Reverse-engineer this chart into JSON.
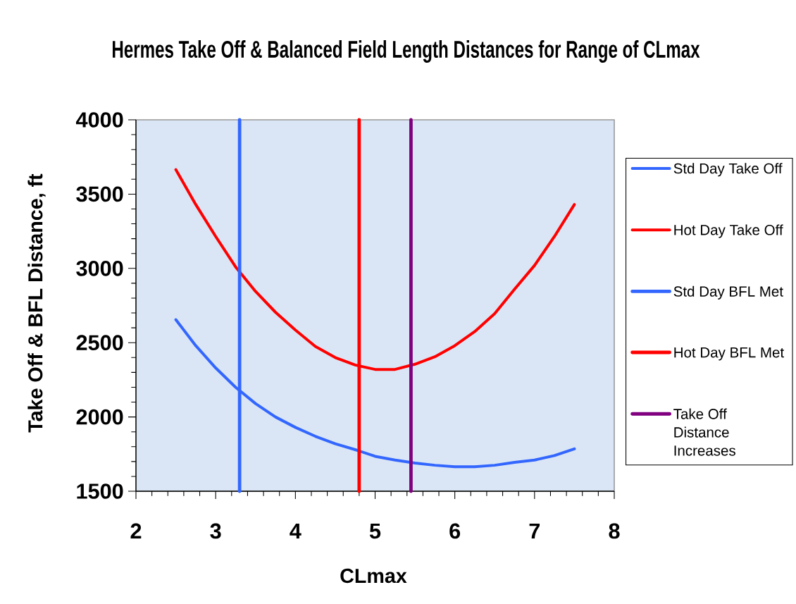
{
  "chart_data": {
    "type": "line",
    "title": "Hermes Take Off & Balanced Field Length Distances for Range of CLmax",
    "xlabel": "CLmax",
    "ylabel": "Take Off & BFL Distance, ft",
    "x": [
      2.5,
      2.75,
      3,
      3.25,
      3.5,
      3.75,
      4,
      4.25,
      4.5,
      4.75,
      5,
      5.25,
      5.5,
      5.75,
      6,
      6.25,
      6.5,
      6.75,
      7,
      7.25,
      7.5
    ],
    "xlim": [
      2,
      8
    ],
    "xticks": [
      2,
      {
        "value": 2.2,
        "label": null
      },
      {
        "value": 2.4,
        "label": null
      },
      {
        "value": 2.6,
        "label": null
      },
      {
        "value": 2.8,
        "label": null
      },
      3,
      {
        "value": 3.2,
        "label": null
      },
      {
        "value": 3.4,
        "label": null
      },
      {
        "value": 3.6,
        "label": null
      },
      {
        "value": 3.8,
        "label": null
      },
      4,
      {
        "value": 4.2,
        "label": null
      },
      {
        "value": 4.4,
        "label": null
      },
      {
        "value": 4.6,
        "label": null
      },
      {
        "value": 4.8,
        "label": null
      },
      5,
      {
        "value": 5.2,
        "label": null
      },
      {
        "value": 5.4,
        "label": null
      },
      {
        "value": 5.6,
        "label": null
      },
      {
        "value": 5.8,
        "label": null
      },
      6,
      {
        "value": 6.2,
        "label": null
      },
      {
        "value": 6.4,
        "label": null
      },
      {
        "value": 6.6,
        "label": null
      },
      {
        "value": 6.8,
        "label": null
      },
      7,
      {
        "value": 7.2,
        "label": null
      },
      {
        "value": 7.4,
        "label": null
      },
      {
        "value": 7.6,
        "label": null
      },
      {
        "value": 7.8,
        "label": null
      },
      8
    ],
    "ylim": [
      1500,
      4000
    ],
    "yticks": [
      1500,
      {
        "value": 1600,
        "label": null
      },
      {
        "value": 1700,
        "label": null
      },
      {
        "value": 1800,
        "label": null
      },
      {
        "value": 1900,
        "label": null
      },
      2000,
      {
        "value": 2100,
        "label": null
      },
      {
        "value": 2200,
        "label": null
      },
      {
        "value": 2300,
        "label": null
      },
      {
        "value": 2400,
        "label": null
      },
      2500,
      {
        "value": 2600,
        "label": null
      },
      {
        "value": 2700,
        "label": null
      },
      {
        "value": 2800,
        "label": null
      },
      {
        "value": 2900,
        "label": null
      },
      3000,
      {
        "value": 3100,
        "label": null
      },
      {
        "value": 3200,
        "label": null
      },
      {
        "value": 3300,
        "label": null
      },
      {
        "value": 3400,
        "label": null
      },
      3500,
      {
        "value": 3600,
        "label": null
      },
      {
        "value": 3700,
        "label": null
      },
      {
        "value": 3800,
        "label": null
      },
      {
        "value": 3900,
        "label": null
      },
      4000
    ],
    "legend": "right",
    "marker": "none",
    "line_style": "solid",
    "series": [
      {
        "name": "Std Day Take Off",
        "color": "#3366ff",
        "values": [
          2655,
          2480,
          2330,
          2200,
          2090,
          2000,
          1930,
          1870,
          1820,
          1780,
          1735,
          1710,
          1690,
          1675,
          1665,
          1665,
          1675,
          1695,
          1710,
          1740,
          1785
        ]
      },
      {
        "name": "Hot Day Take Off",
        "color": "#ff0000",
        "values": [
          3665,
          3430,
          3215,
          3010,
          2845,
          2705,
          2585,
          2475,
          2400,
          2350,
          2320,
          2320,
          2355,
          2405,
          2480,
          2575,
          2695,
          2860,
          3020,
          3215,
          3430
        ]
      },
      {
        "name": "Std Day BFL Met",
        "color": "#3366ff",
        "x": [
          3.3,
          3.3
        ],
        "values": [
          1500,
          4000
        ]
      },
      {
        "name": "Hot Day BFL Met",
        "color": "#ff0000",
        "x": [
          4.8,
          4.8
        ],
        "values": [
          1500,
          4000
        ]
      },
      {
        "name": "Take Off Distance Increases",
        "color": "#800080",
        "x": [
          5.45,
          5.45
        ],
        "values": [
          1500,
          4000
        ]
      }
    ]
  }
}
